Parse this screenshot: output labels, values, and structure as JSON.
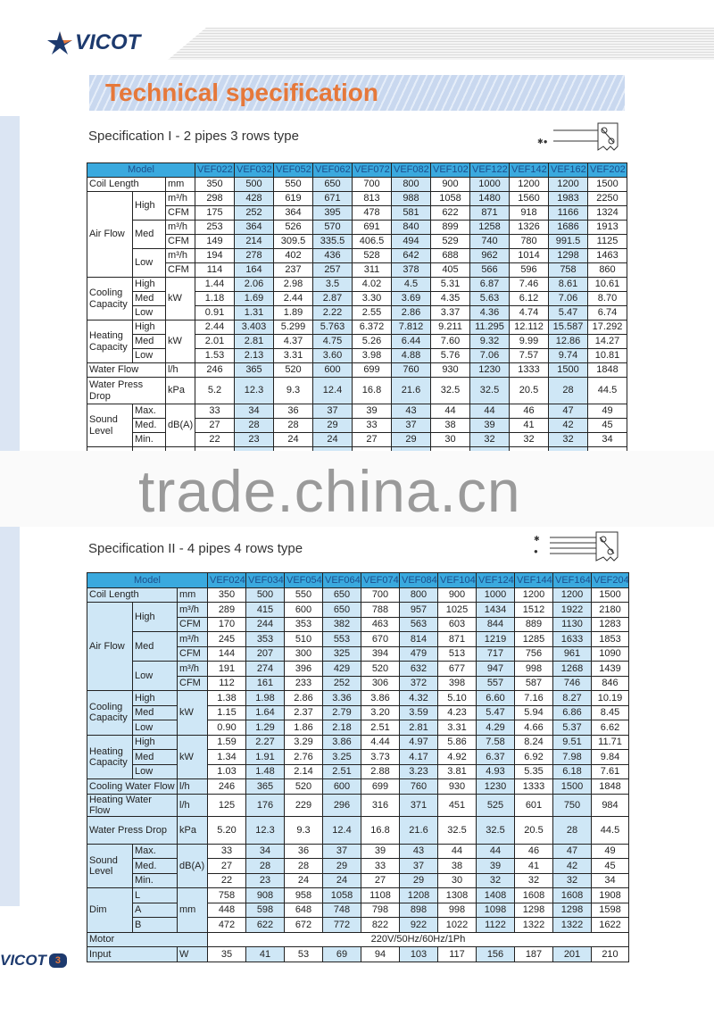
{
  "brand": {
    "name": "VICOT",
    "page_number": "3",
    "colors": {
      "navy": "#1d3a6e",
      "orange": "#e6783a",
      "header_blue": "#3aa9de",
      "alt_column": "#cfe7f6"
    }
  },
  "title": "Technical specification",
  "watermark": "trade.china.cn",
  "spec1": {
    "title": "Specification I - 2 pipes 3 rows type",
    "model_label": "Model",
    "models": [
      "VEF022",
      "VEF032",
      "VEF052",
      "VEF062",
      "VEF072",
      "VEF082",
      "VEF102",
      "VEF122",
      "VEF142",
      "VEF162",
      "VEF202"
    ],
    "groups": [
      {
        "label": "Coil Length",
        "unit": "mm",
        "values": [
          "350",
          "500",
          "550",
          "650",
          "700",
          "800",
          "900",
          "1000",
          "1200",
          "1200",
          "1500"
        ]
      },
      {
        "label": "Air Flow",
        "subs": [
          {
            "label": "High",
            "rows": [
              {
                "unit": "m³/h",
                "values": [
                  "298",
                  "428",
                  "619",
                  "671",
                  "813",
                  "988",
                  "1058",
                  "1480",
                  "1560",
                  "1983",
                  "2250"
                ]
              },
              {
                "unit": "CFM",
                "values": [
                  "175",
                  "252",
                  "364",
                  "395",
                  "478",
                  "581",
                  "622",
                  "871",
                  "918",
                  "1166",
                  "1324"
                ]
              }
            ]
          },
          {
            "label": "Med",
            "rows": [
              {
                "unit": "m³/h",
                "values": [
                  "253",
                  "364",
                  "526",
                  "570",
                  "691",
                  "840",
                  "899",
                  "1258",
                  "1326",
                  "1686",
                  "1913"
                ]
              },
              {
                "unit": "CFM",
                "values": [
                  "149",
                  "214",
                  "309.5",
                  "335.5",
                  "406.5",
                  "494",
                  "529",
                  "740",
                  "780",
                  "991.5",
                  "1125"
                ]
              }
            ]
          },
          {
            "label": "Low",
            "rows": [
              {
                "unit": "m³/h",
                "values": [
                  "194",
                  "278",
                  "402",
                  "436",
                  "528",
                  "642",
                  "688",
                  "962",
                  "1014",
                  "1298",
                  "1463"
                ]
              },
              {
                "unit": "CFM",
                "values": [
                  "114",
                  "164",
                  "237",
                  "257",
                  "311",
                  "378",
                  "405",
                  "566",
                  "596",
                  "758",
                  "860"
                ]
              }
            ]
          }
        ]
      },
      {
        "label": "Cooling Capacity",
        "unit": "kW",
        "levels": [
          {
            "label": "High",
            "values": [
              "1.44",
              "2.06",
              "2.98",
              "3.5",
              "4.02",
              "4.5",
              "5.31",
              "6.87",
              "7.46",
              "8.61",
              "10.61"
            ]
          },
          {
            "label": "Med",
            "values": [
              "1.18",
              "1.69",
              "2.44",
              "2.87",
              "3.30",
              "3.69",
              "4.35",
              "5.63",
              "6.12",
              "7.06",
              "8.70"
            ]
          },
          {
            "label": "Low",
            "values": [
              "0.91",
              "1.31",
              "1.89",
              "2.22",
              "2.55",
              "2.86",
              "3.37",
              "4.36",
              "4.74",
              "5.47",
              "6.74"
            ]
          }
        ]
      },
      {
        "label": "Heating Capacity",
        "unit": "kW",
        "levels": [
          {
            "label": "High",
            "values": [
              "2.44",
              "3.403",
              "5.299",
              "5.763",
              "6.372",
              "7.812",
              "9.211",
              "11.295",
              "12.112",
              "15.587",
              "17.292"
            ]
          },
          {
            "label": "Med",
            "values": [
              "2.01",
              "2.81",
              "4.37",
              "4.75",
              "5.26",
              "6.44",
              "7.60",
              "9.32",
              "9.99",
              "12.86",
              "14.27"
            ]
          },
          {
            "label": "Low",
            "values": [
              "1.53",
              "2.13",
              "3.31",
              "3.60",
              "3.98",
              "4.88",
              "5.76",
              "7.06",
              "7.57",
              "9.74",
              "10.81"
            ]
          }
        ]
      },
      {
        "label": "Water Flow",
        "unit": "l/h",
        "values": [
          "246",
          "365",
          "520",
          "600",
          "699",
          "760",
          "930",
          "1230",
          "1333",
          "1500",
          "1848"
        ]
      },
      {
        "label": "Water Press Drop",
        "unit": "kPa",
        "values": [
          "5.2",
          "12.3",
          "9.3",
          "12.4",
          "16.8",
          "21.6",
          "32.5",
          "32.5",
          "20.5",
          "28",
          "44.5"
        ]
      },
      {
        "label": "Sound Level",
        "unit": "dB(A)",
        "levels": [
          {
            "label": "Max.",
            "values": [
              "33",
              "34",
              "36",
              "37",
              "39",
              "43",
              "44",
              "44",
              "46",
              "47",
              "49"
            ]
          },
          {
            "label": "Med.",
            "values": [
              "27",
              "28",
              "28",
              "29",
              "33",
              "37",
              "38",
              "39",
              "41",
              "42",
              "45"
            ]
          },
          {
            "label": "Min.",
            "values": [
              "22",
              "23",
              "24",
              "24",
              "27",
              "29",
              "30",
              "32",
              "32",
              "32",
              "34"
            ]
          }
        ]
      }
    ]
  },
  "spec2": {
    "title": "Specification II - 4 pipes  4 rows type",
    "model_label": "Model",
    "models": [
      "VEF024",
      "VEF034",
      "VEF054",
      "VEF064",
      "VEF074",
      "VEF084",
      "VEF104",
      "VEF124",
      "VEF144",
      "VEF164",
      "VEF204"
    ],
    "groups": [
      {
        "label": "Coil Length",
        "unit": "mm",
        "values": [
          "350",
          "500",
          "550",
          "650",
          "700",
          "800",
          "900",
          "1000",
          "1200",
          "1200",
          "1500"
        ]
      },
      {
        "label": "Air Flow",
        "subs": [
          {
            "label": "High",
            "rows": [
              {
                "unit": "m³/h",
                "values": [
                  "289",
                  "415",
                  "600",
                  "650",
                  "788",
                  "957",
                  "1025",
                  "1434",
                  "1512",
                  "1922",
                  "2180"
                ]
              },
              {
                "unit": "CFM",
                "values": [
                  "170",
                  "244",
                  "353",
                  "382",
                  "463",
                  "563",
                  "603",
                  "844",
                  "889",
                  "1130",
                  "1283"
                ]
              }
            ]
          },
          {
            "label": "Med",
            "rows": [
              {
                "unit": "m³/h",
                "values": [
                  "245",
                  "353",
                  "510",
                  "553",
                  "670",
                  "814",
                  "871",
                  "1219",
                  "1285",
                  "1633",
                  "1853"
                ]
              },
              {
                "unit": "CFM",
                "values": [
                  "144",
                  "207",
                  "300",
                  "325",
                  "394",
                  "479",
                  "513",
                  "717",
                  "756",
                  "961",
                  "1090"
                ]
              }
            ]
          },
          {
            "label": "Low",
            "rows": [
              {
                "unit": "m³/h",
                "values": [
                  "191",
                  "274",
                  "396",
                  "429",
                  "520",
                  "632",
                  "677",
                  "947",
                  "998",
                  "1268",
                  "1439"
                ]
              },
              {
                "unit": "CFM",
                "values": [
                  "112",
                  "161",
                  "233",
                  "252",
                  "306",
                  "372",
                  "398",
                  "557",
                  "587",
                  "746",
                  "846"
                ]
              }
            ]
          }
        ]
      },
      {
        "label": "Cooling Capacity",
        "unit": "kW",
        "levels": [
          {
            "label": "High",
            "values": [
              "1.38",
              "1.98",
              "2.86",
              "3.36",
              "3.86",
              "4.32",
              "5.10",
              "6.60",
              "7.16",
              "8.27",
              "10.19"
            ]
          },
          {
            "label": "Med",
            "values": [
              "1.15",
              "1.64",
              "2.37",
              "2.79",
              "3.20",
              "3.59",
              "4.23",
              "5.47",
              "5.94",
              "6.86",
              "8.45"
            ]
          },
          {
            "label": "Low",
            "values": [
              "0.90",
              "1.29",
              "1.86",
              "2.18",
              "2.51",
              "2.81",
              "3.31",
              "4.29",
              "4.66",
              "5.37",
              "6.62"
            ]
          }
        ]
      },
      {
        "label": "Heating Capacity",
        "unit": "kW",
        "levels": [
          {
            "label": "High",
            "values": [
              "1.59",
              "2.27",
              "3.29",
              "3.86",
              "4.44",
              "4.97",
              "5.86",
              "7.58",
              "8.24",
              "9.51",
              "11.71"
            ]
          },
          {
            "label": "Med",
            "values": [
              "1.34",
              "1.91",
              "2.76",
              "3.25",
              "3.73",
              "4.17",
              "4.92",
              "6.37",
              "6.92",
              "7.98",
              "9.84"
            ]
          },
          {
            "label": "Low",
            "values": [
              "1.03",
              "1.48",
              "2.14",
              "2.51",
              "2.88",
              "3.23",
              "3.81",
              "4.93",
              "5.35",
              "6.18",
              "7.61"
            ]
          }
        ]
      },
      {
        "label": "Cooling Water Flow",
        "unit": "l/h",
        "values": [
          "246",
          "365",
          "520",
          "600",
          "699",
          "760",
          "930",
          "1230",
          "1333",
          "1500",
          "1848"
        ]
      },
      {
        "label": "Heating Water Flow",
        "unit": "l/h",
        "values": [
          "125",
          "176",
          "229",
          "296",
          "316",
          "371",
          "451",
          "525",
          "601",
          "750",
          "984"
        ]
      },
      {
        "label": "Water Press Drop",
        "unit": "kPa",
        "values": [
          "5.20",
          "12.3",
          "9.3",
          "12.4",
          "16.8",
          "21.6",
          "32.5",
          "32.5",
          "20.5",
          "28",
          "44.5"
        ]
      },
      {
        "label": "Sound Level",
        "unit": "dB(A)",
        "levels": [
          {
            "label": "Max.",
            "values": [
              "33",
              "34",
              "36",
              "37",
              "39",
              "43",
              "44",
              "44",
              "46",
              "47",
              "49"
            ]
          },
          {
            "label": "Med.",
            "values": [
              "27",
              "28",
              "28",
              "29",
              "33",
              "37",
              "38",
              "39",
              "41",
              "42",
              "45"
            ]
          },
          {
            "label": "Min.",
            "values": [
              "22",
              "23",
              "24",
              "24",
              "27",
              "29",
              "30",
              "32",
              "32",
              "32",
              "34"
            ]
          }
        ]
      },
      {
        "label": "Dim",
        "unit": "mm",
        "levels": [
          {
            "label": "L",
            "values": [
              "758",
              "908",
              "958",
              "1058",
              "1108",
              "1208",
              "1308",
              "1408",
              "1608",
              "1608",
              "1908"
            ]
          },
          {
            "label": "A",
            "values": [
              "448",
              "598",
              "648",
              "748",
              "798",
              "898",
              "998",
              "1098",
              "1298",
              "1298",
              "1598"
            ]
          },
          {
            "label": "B",
            "values": [
              "472",
              "622",
              "672",
              "772",
              "822",
              "922",
              "1022",
              "1122",
              "1322",
              "1322",
              "1622"
            ]
          }
        ]
      },
      {
        "label": "Motor",
        "merged": "220V/50Hz/60Hz/1Ph"
      },
      {
        "label": "Input",
        "unit": "W",
        "values": [
          "35",
          "41",
          "53",
          "69",
          "94",
          "103",
          "117",
          "156",
          "187",
          "201",
          "210"
        ]
      }
    ]
  }
}
